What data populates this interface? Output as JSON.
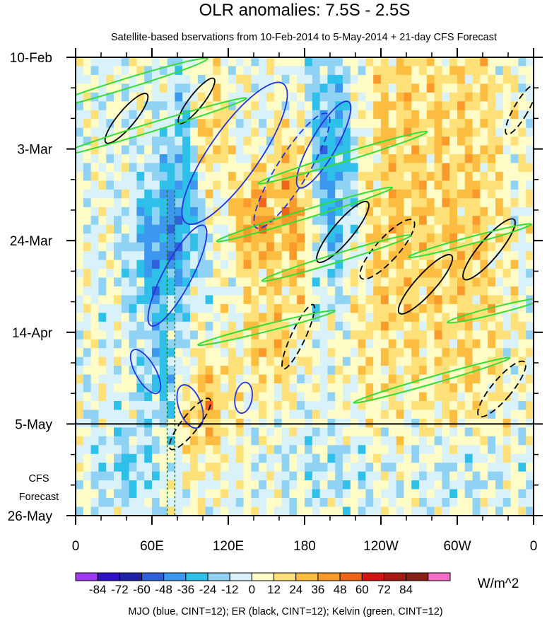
{
  "title": "OLR anomalies: 7.5S - 2.5S",
  "subtitle": "Satellite-based bservations from 10-Feb-2014 to 5-May-2014 + 21-day CFS Forecast",
  "forecast_label_line1": "CFS",
  "forecast_label_line2": "Forecast",
  "colorbar_units": "W/m^2",
  "footer_note": "MJO (blue, CINT=12); ER (black, CINT=12); Kelvin (green, CINT=12)",
  "chart_data": {
    "type": "heatmap",
    "title": "OLR anomalies: 7.5S - 2.5S",
    "x_axis": {
      "quantity": "longitude",
      "range": [
        "0",
        "0"
      ],
      "ticks": [
        "0",
        "60E",
        "120E",
        "180",
        "120W",
        "60W",
        "0"
      ],
      "tick_lon": [
        0,
        60,
        120,
        180,
        240,
        300,
        360
      ]
    },
    "y_axis": {
      "quantity": "date",
      "direction": "top-to-bottom",
      "range": [
        "10-Feb-2014",
        "26-May-2014"
      ],
      "ticks": [
        "10-Feb",
        "3-Mar",
        "24-Mar",
        "14-Apr",
        "5-May",
        "26-May"
      ],
      "tick_dates": [
        "2014-02-10",
        "2014-03-03",
        "2014-03-24",
        "2014-04-14",
        "2014-05-05",
        "2014-05-26"
      ]
    },
    "observation_end": "2014-05-05",
    "forecast_period": [
      "2014-05-05",
      "2014-05-26"
    ],
    "colorbar": {
      "labels": [
        "-84",
        "-72",
        "-60",
        "-48",
        "-36",
        "-24",
        "-12",
        "0",
        "12",
        "24",
        "36",
        "48",
        "60",
        "72",
        "84"
      ],
      "colors": [
        "#9E3AF0",
        "#3010C8",
        "#2222A8",
        "#2F62D8",
        "#3C98EE",
        "#2FC0EA",
        "#8FD2F4",
        "#D9F2F9",
        "#FFFCC8",
        "#FFE079",
        "#FDBD41",
        "#F99A2A",
        "#F06418",
        "#D41414",
        "#A41A12",
        "#882018",
        "#F46EC9"
      ],
      "units": "W/m^2"
    },
    "contour_overlays": [
      {
        "name": "MJO",
        "color": "#2233dd",
        "cint": 12
      },
      {
        "name": "ER",
        "color": "#000000",
        "cint": 12
      },
      {
        "name": "Kelvin",
        "color": "#33dd33",
        "cint": 12
      }
    ],
    "grid": false
  }
}
